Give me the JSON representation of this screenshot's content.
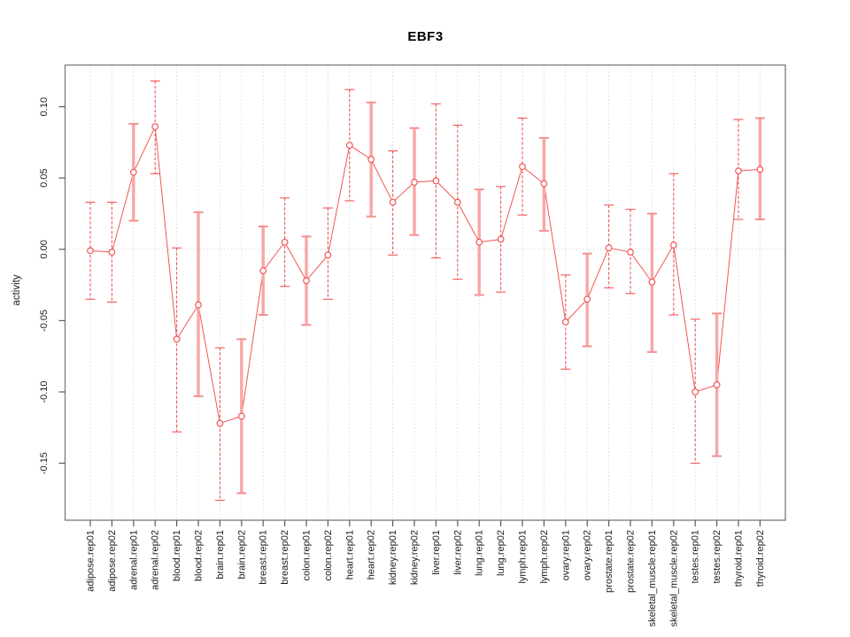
{
  "chart_data": {
    "type": "line",
    "title": "EBF3",
    "xlabel": "",
    "ylabel": "activity",
    "ylim": [
      -0.19,
      0.131
    ],
    "yticks": [
      0.1,
      0.05,
      0.0,
      -0.05,
      -0.1,
      -0.15
    ],
    "ytick_labels": [
      "0.10",
      "0.05",
      "0.00",
      "-0.05",
      "-0.10",
      "-0.15"
    ],
    "grid": "vertical dotted line at every category; horizontal dotted line at y=0; no legend",
    "legend": null,
    "categories": [
      "adipose.rep01",
      "adipose.rep02",
      "adrenal.rep01",
      "adrenal.rep02",
      "blood.rep01",
      "blood.rep02",
      "brain.rep01",
      "brain.rep02",
      "breast.rep01",
      "breast.rep02",
      "colon.rep01",
      "colon.rep02",
      "heart.rep01",
      "heart.rep02",
      "kidney.rep01",
      "kidney.rep02",
      "liver.rep01",
      "liver.rep02",
      "lung.rep01",
      "lung.rep02",
      "lymph.rep01",
      "lymph.rep02",
      "ovary.rep01",
      "ovary.rep02",
      "prostate.rep01",
      "prostate.rep02",
      "skeletal_muscle.rep01",
      "skeletal_muscle.rep02",
      "testes.rep01",
      "testes.rep02",
      "thyroid.rep01",
      "thyroid.rep02"
    ],
    "series": [
      {
        "name": "activity",
        "values": [
          -0.001,
          -0.002,
          0.054,
          0.086,
          -0.063,
          -0.039,
          -0.122,
          -0.117,
          -0.015,
          0.005,
          -0.022,
          -0.004,
          0.073,
          0.063,
          0.033,
          0.047,
          0.048,
          0.033,
          0.005,
          0.007,
          0.058,
          0.046,
          -0.051,
          -0.035,
          0.001,
          -0.002,
          -0.023,
          0.003,
          -0.1,
          -0.095,
          0.055,
          0.056
        ],
        "upper": [
          0.033,
          0.033,
          0.088,
          0.118,
          0.001,
          0.026,
          -0.069,
          -0.063,
          0.016,
          0.036,
          0.009,
          0.029,
          0.112,
          0.103,
          0.069,
          0.085,
          0.102,
          0.087,
          0.042,
          0.044,
          0.092,
          0.078,
          -0.018,
          -0.003,
          0.031,
          0.028,
          0.025,
          0.053,
          -0.049,
          -0.045,
          0.091,
          0.092
        ],
        "lower": [
          -0.035,
          -0.037,
          0.02,
          0.053,
          -0.128,
          -0.103,
          -0.176,
          -0.171,
          -0.046,
          -0.026,
          -0.053,
          -0.035,
          0.034,
          0.023,
          -0.004,
          0.01,
          -0.006,
          -0.021,
          -0.032,
          -0.03,
          0.024,
          0.013,
          -0.084,
          -0.068,
          -0.027,
          -0.031,
          -0.072,
          -0.046,
          -0.15,
          -0.145,
          0.021,
          0.021
        ],
        "bar_styles": [
          "dashed",
          "dashed",
          "solid",
          "dashed",
          "dashed",
          "solid",
          "dashed",
          "solid",
          "solid",
          "dashed",
          "solid",
          "dashed",
          "dashed",
          "solid",
          "dashed",
          "solid",
          "dashed",
          "dashed",
          "solid",
          "dashed",
          "dashed",
          "solid",
          "dashed",
          "solid",
          "dashed",
          "dashed",
          "solid",
          "dashed",
          "dashed",
          "solid",
          "dashed",
          "solid"
        ]
      }
    ],
    "colors": {
      "series_red": "#f25555",
      "bar_light_pink": "#f9a6a6",
      "bar_cap_pink": "#f58f8f",
      "grid_gray": "#d6d6d6",
      "box_gray": "#7a7a7a",
      "tick_gray": "#5a5a5a",
      "text": "#1a1a1a",
      "point_fill": "#ffffff"
    }
  }
}
